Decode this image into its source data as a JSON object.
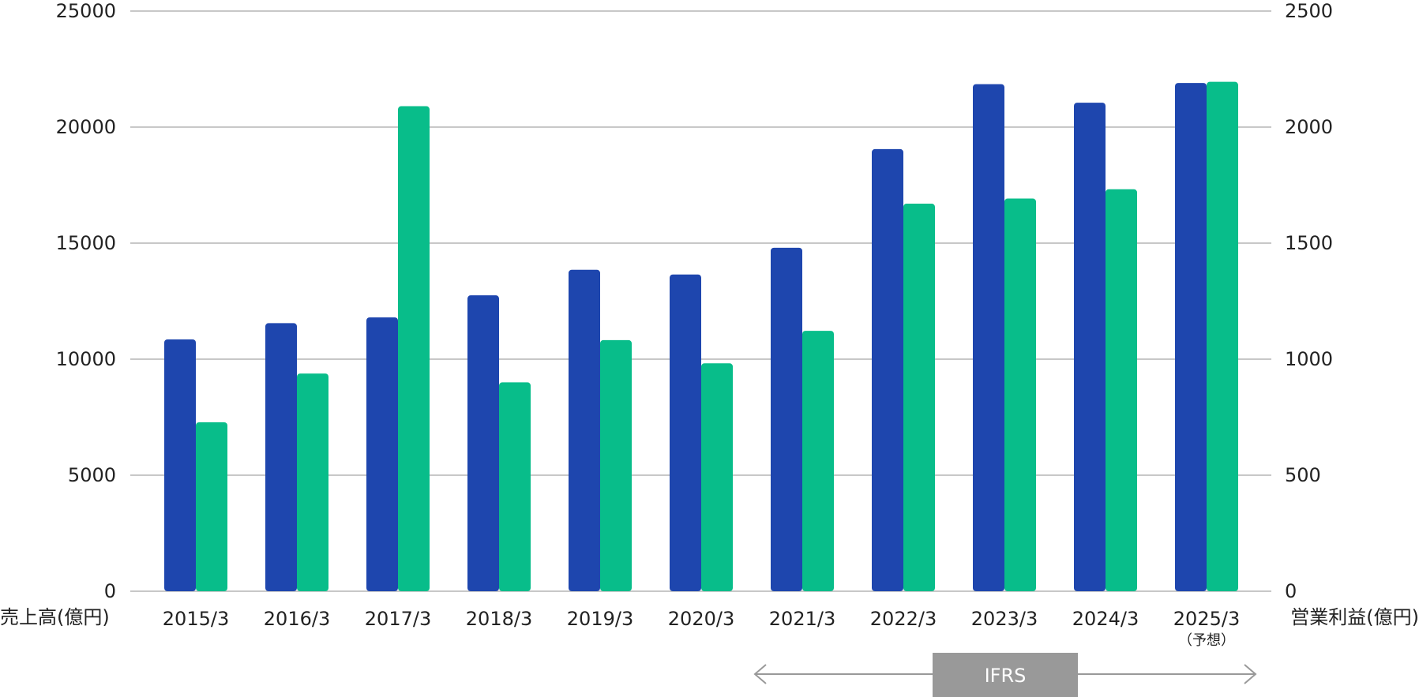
{
  "chart_data": {
    "type": "bar",
    "categories": [
      "2015/3",
      "2016/3",
      "2017/3",
      "2018/3",
      "2019/3",
      "2020/3",
      "2021/3",
      "2022/3",
      "2023/3",
      "2024/3",
      "2025/3"
    ],
    "category_note": {
      "index": 10,
      "text": "（予想）"
    },
    "series": [
      {
        "name": "",
        "axis": "left",
        "color": "#1e46ae",
        "values": [
          10850,
          11550,
          11800,
          12750,
          13850,
          13650,
          14800,
          19050,
          21850,
          21050,
          21900
        ]
      },
      {
        "name": "",
        "axis": "right",
        "color": "#08bd8a",
        "values": [
          728,
          938,
          2090,
          900,
          1082,
          982,
          1122,
          1670,
          1692,
          1732,
          2195
        ]
      }
    ],
    "y_left": {
      "label": "売上高(億円)",
      "ylim": [
        0,
        25000
      ],
      "ticks": [
        0,
        5000,
        10000,
        15000,
        20000,
        25000
      ]
    },
    "y_right": {
      "label": "営業利益(億円)",
      "ylim": [
        0,
        2500
      ],
      "ticks": [
        0,
        500,
        1000,
        1500,
        2000,
        2500
      ]
    },
    "grid": true,
    "ifrs": {
      "label": "IFRS",
      "from_category": 6,
      "to_category": 10
    }
  }
}
